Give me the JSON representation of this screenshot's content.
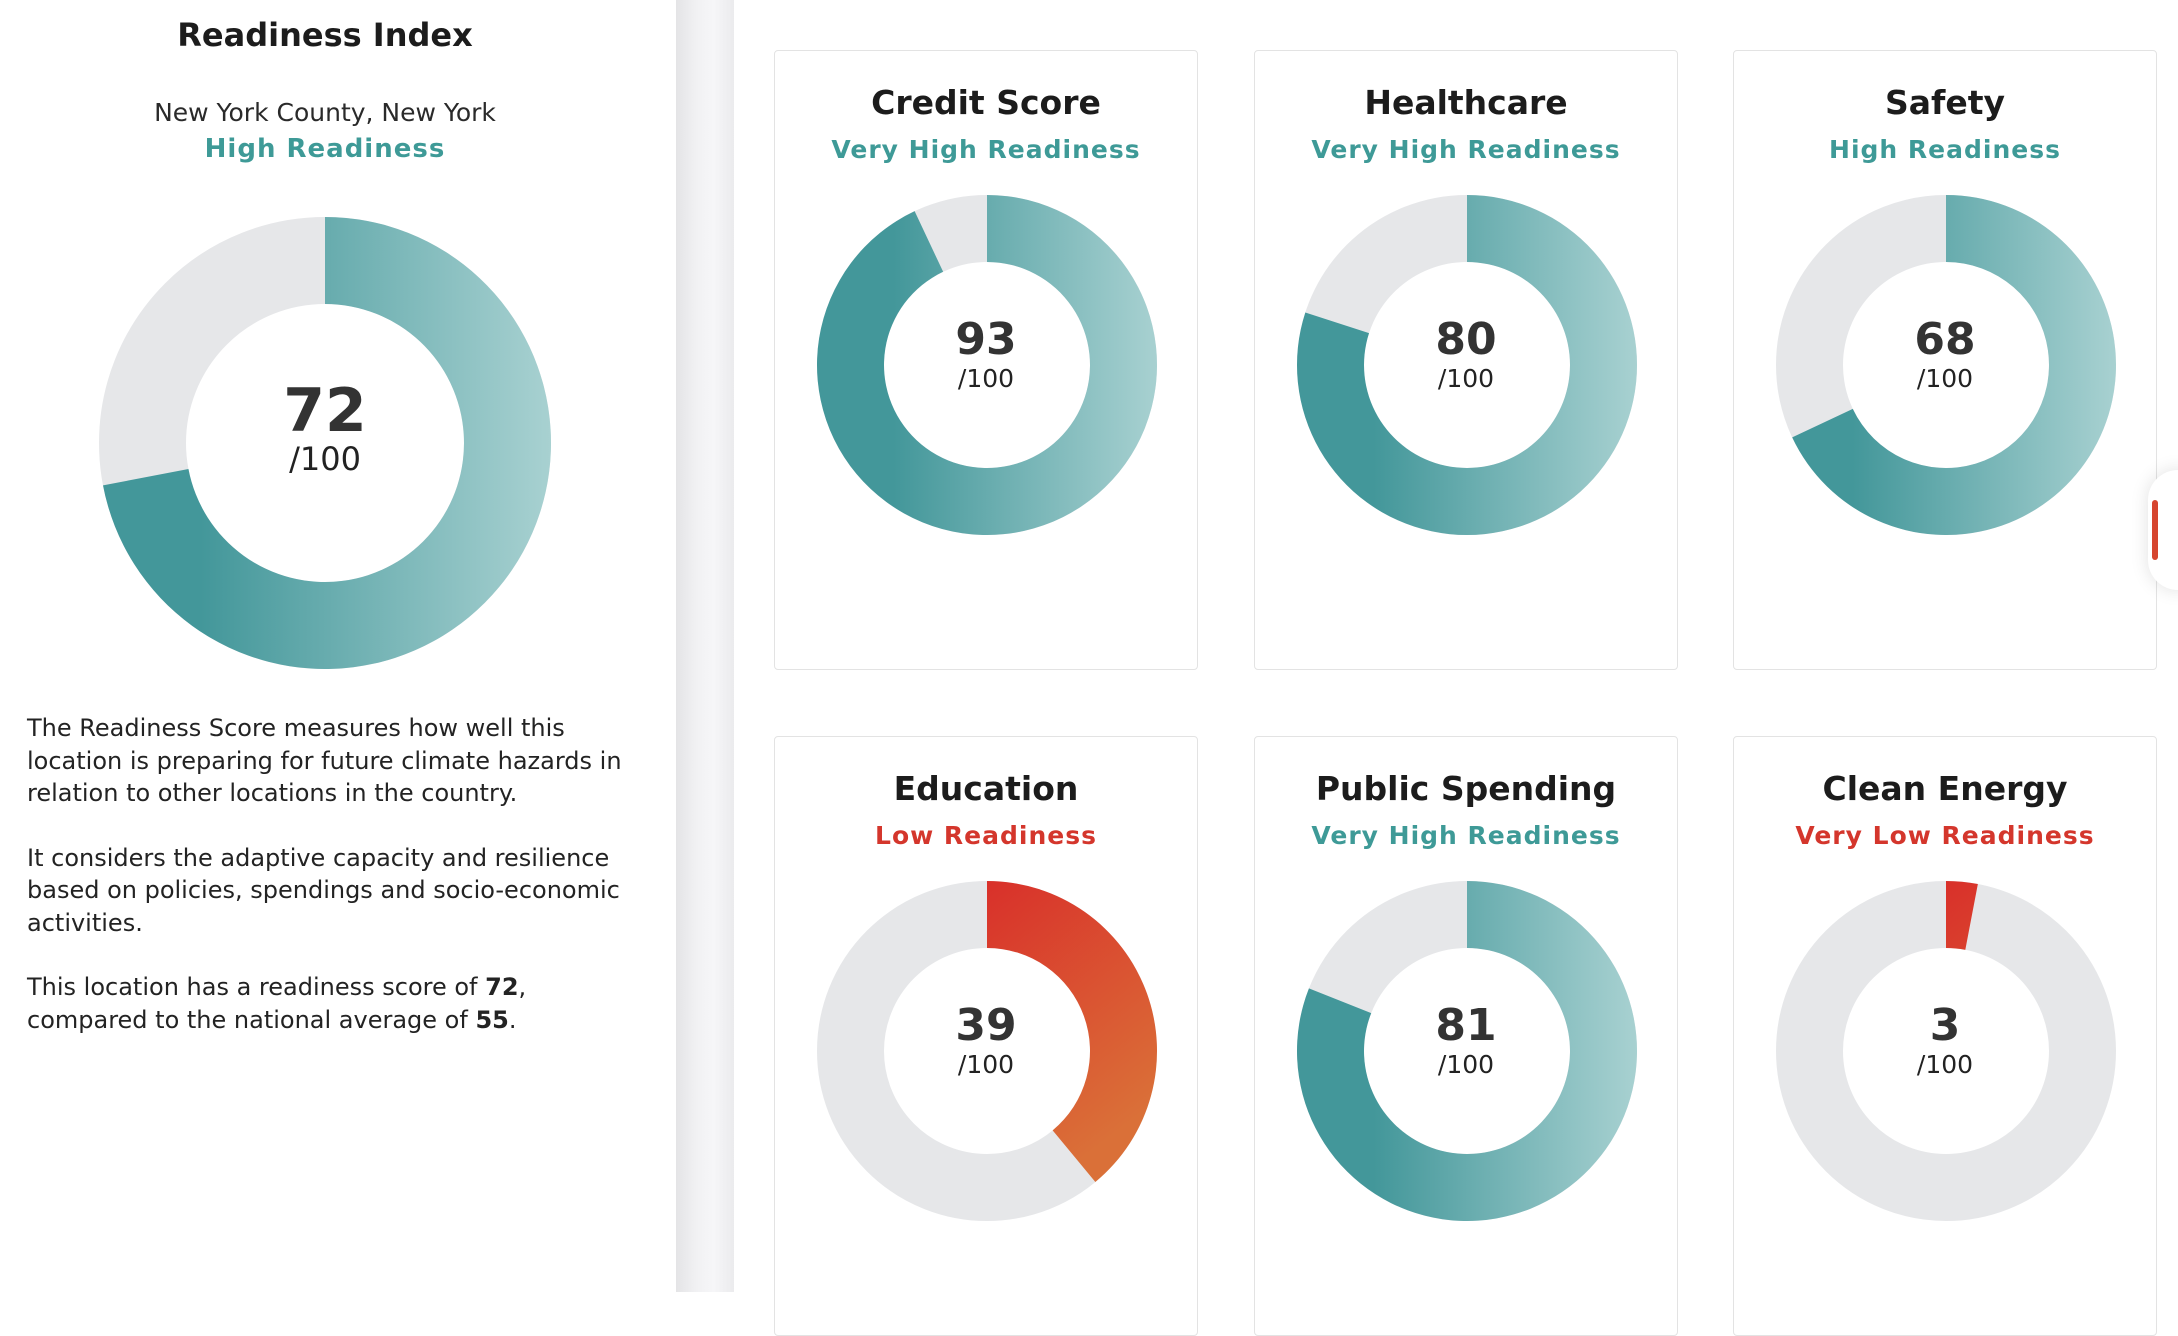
{
  "colors": {
    "teal_dark": "#43979a",
    "teal_light": "#a8d1d1",
    "red_dark": "#d9302a",
    "red_light": "#da7038",
    "track": "#e6e7e9",
    "teal_text": "#3e9a97",
    "red_text": "#d4362c"
  },
  "overall": {
    "title": "Readiness Index",
    "location": "New York County, New York",
    "level": "High Readiness",
    "tone": "teal",
    "score": 72,
    "score_text": "72",
    "out_of": "/100",
    "description": {
      "p1": "The Readiness Score measures how well this location is preparing for future climate hazards in relation to other locations in the country.",
      "p2": "It considers the adaptive capacity and resilience based on policies, spendings and socio-economic activities.",
      "p3_prefix": "This location has a readiness score of ",
      "p3_score": "72",
      "p3_middle": ", compared to the national average of ",
      "p3_average": "55",
      "p3_suffix": "."
    }
  },
  "cards": [
    {
      "title": "Credit Score",
      "level": "Very High Readiness",
      "tone": "teal",
      "score": 93,
      "score_text": "93",
      "out_of": "/100"
    },
    {
      "title": "Healthcare",
      "level": "Very High Readiness",
      "tone": "teal",
      "score": 80,
      "score_text": "80",
      "out_of": "/100"
    },
    {
      "title": "Safety",
      "level": "High Readiness",
      "tone": "teal",
      "score": 68,
      "score_text": "68",
      "out_of": "/100"
    },
    {
      "title": "Education",
      "level": "Low Readiness",
      "tone": "red",
      "score": 39,
      "score_text": "39",
      "out_of": "/100"
    },
    {
      "title": "Public Spending",
      "level": "Very High Readiness",
      "tone": "teal",
      "score": 81,
      "score_text": "81",
      "out_of": "/100"
    },
    {
      "title": "Clean Energy",
      "level": "Very Low Readiness",
      "tone": "red",
      "score": 3,
      "score_text": "3",
      "out_of": "/100"
    }
  ]
}
